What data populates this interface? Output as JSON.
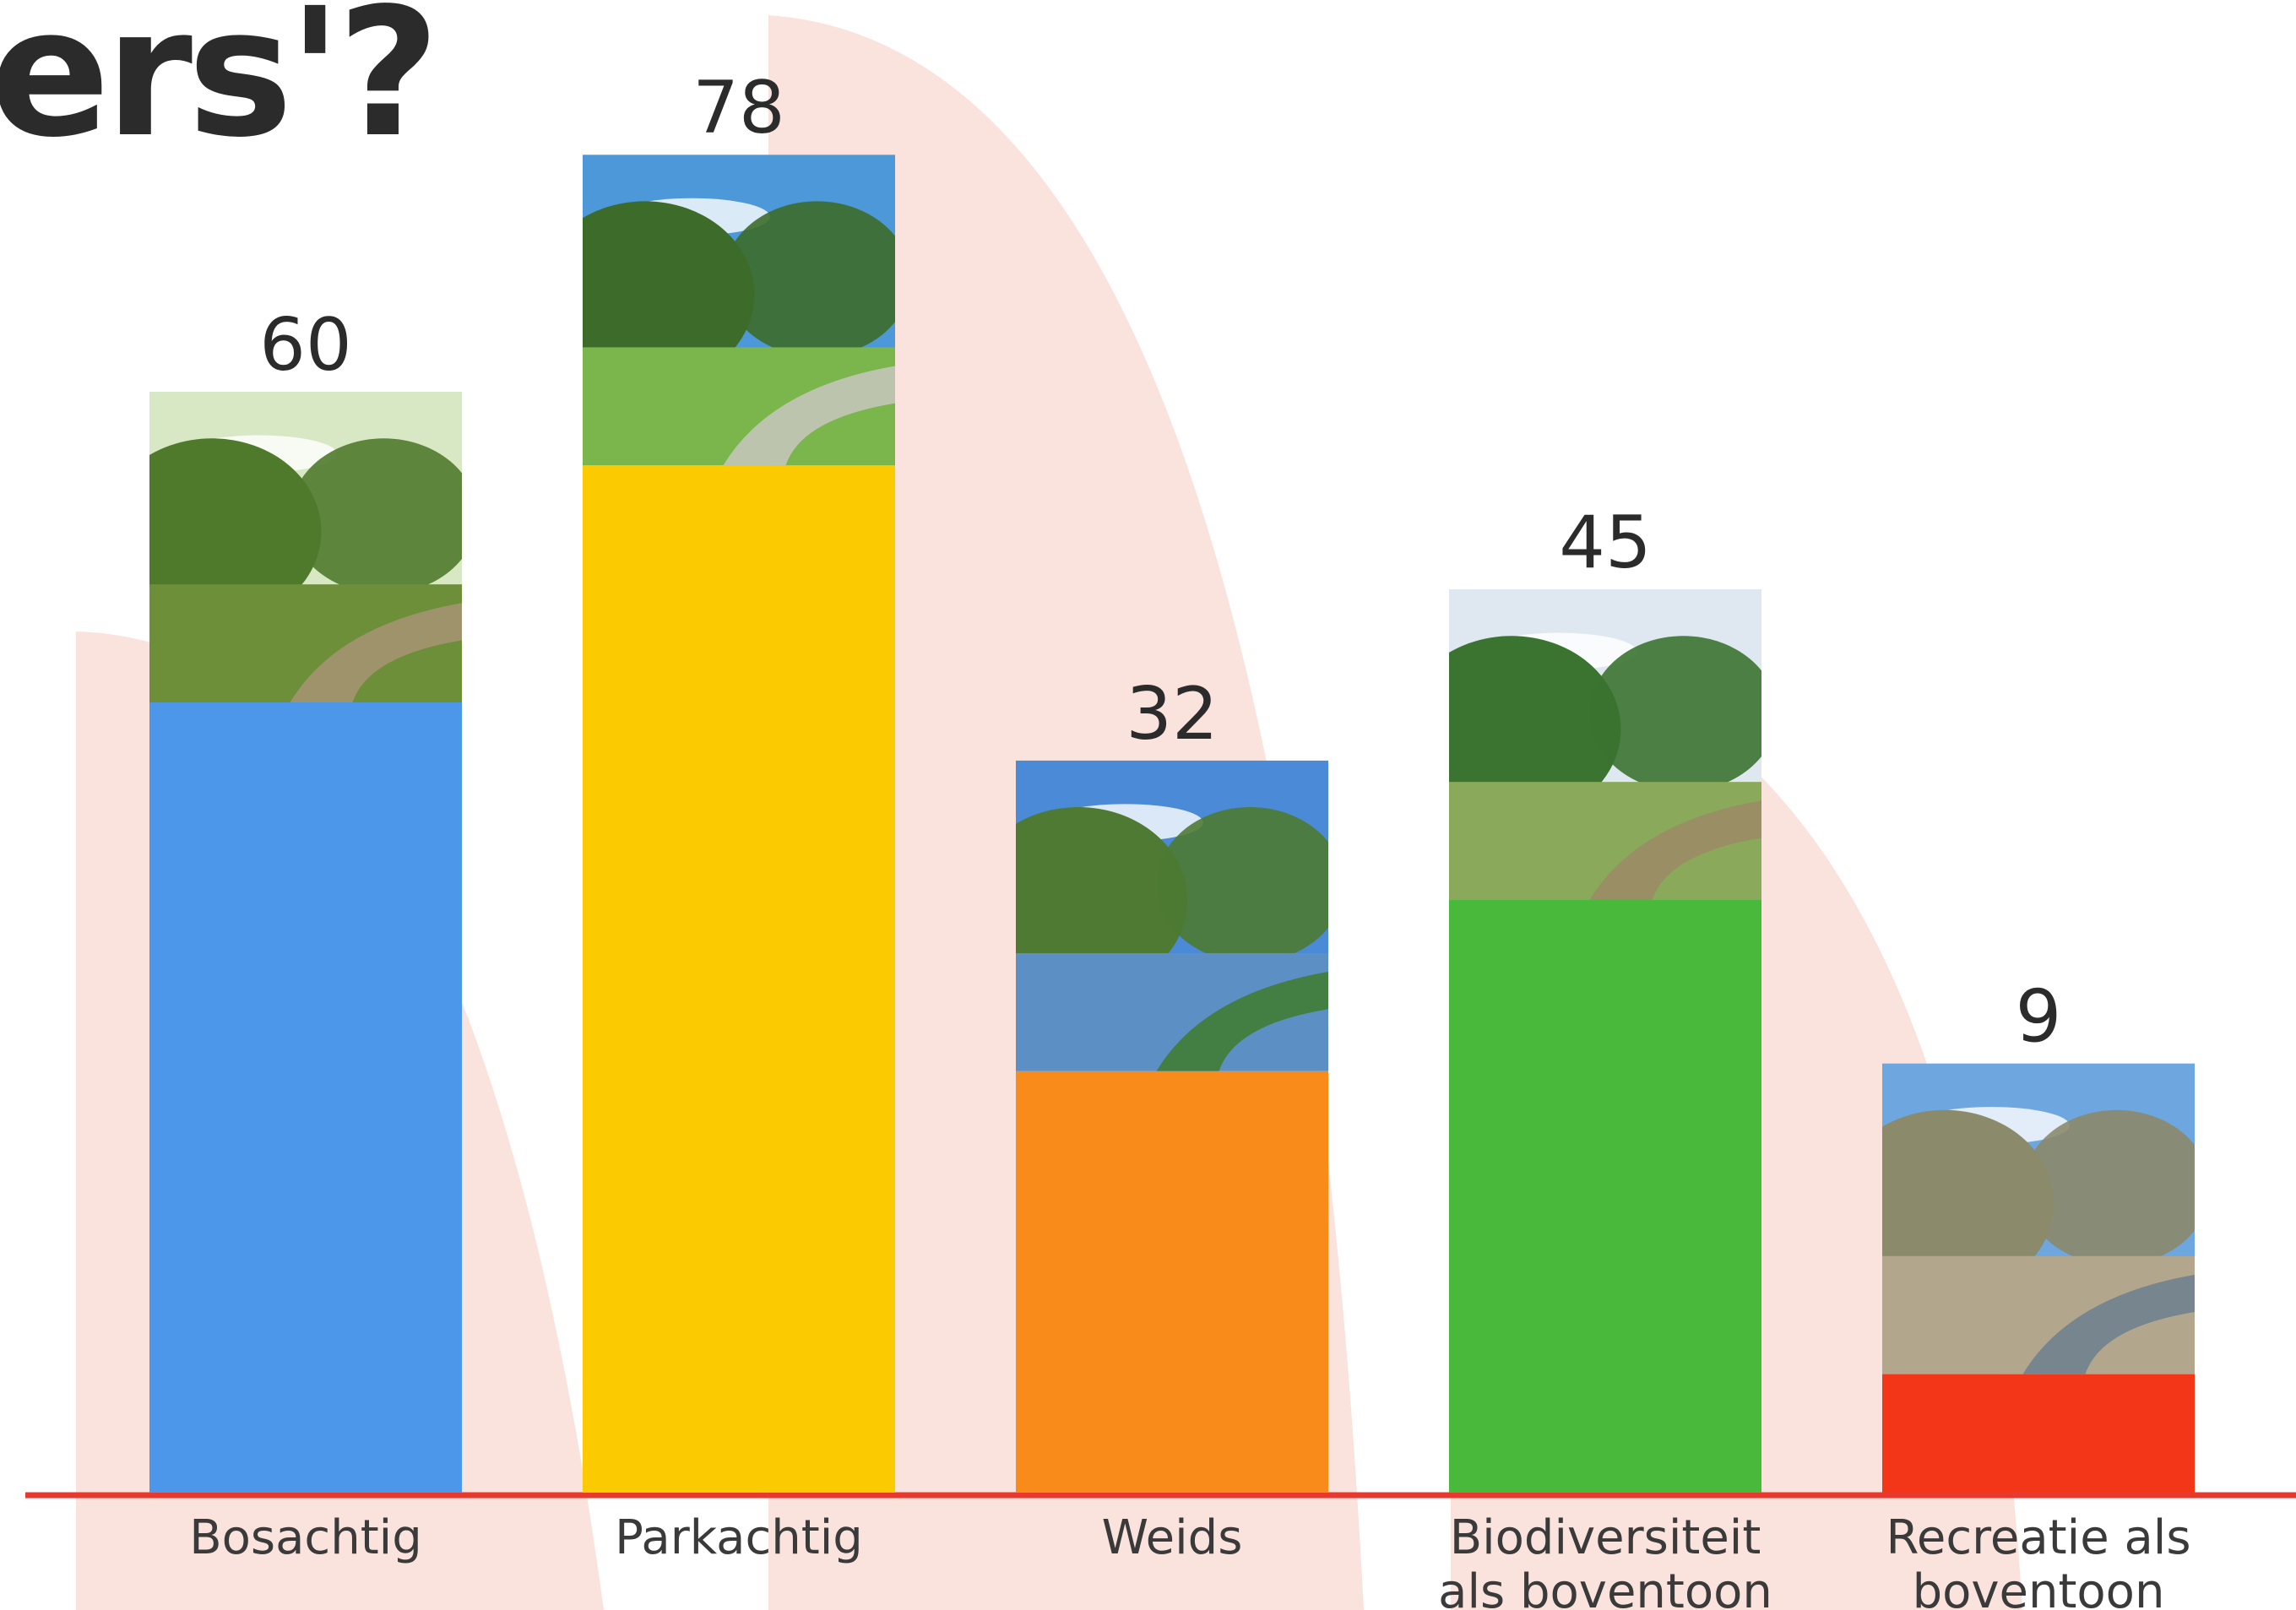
{
  "slide": {
    "title_fragment": "ers'?"
  },
  "colors": {
    "decoration": "#fbe3dd",
    "baseline": "#e8392f",
    "text": "#2b2b2b"
  },
  "chart_data": {
    "type": "bar",
    "title": "",
    "xlabel": "",
    "ylabel": "",
    "categories": [
      [
        "Bosachtig"
      ],
      [
        "Parkachtig"
      ],
      [
        "Weids"
      ],
      [
        "Biodiversiteit",
        "als boventoon"
      ],
      [
        "Recreatie als",
        "boventoon"
      ]
    ],
    "values": [
      60,
      78,
      32,
      45,
      9
    ],
    "bar_colors": [
      "#4c97ea",
      "#fcca00",
      "#f98b1b",
      "#49b93c",
      "#f43618"
    ],
    "photo_icons": [
      "forest-path-photo",
      "park-photo",
      "pond-photo",
      "wetland-photo",
      "water-playground-photo"
    ],
    "photo_palettes": [
      {
        "sky": "#d9e8c4",
        "mid": "#4f7a2c",
        "ground": "#6d8f3a",
        "accent": "#a79474"
      },
      {
        "sky": "#4d98d8",
        "mid": "#3d6b2a",
        "ground": "#7ab64b",
        "accent": "#c9c7bf"
      },
      {
        "sky": "#4a8ad6",
        "mid": "#4e7a33",
        "ground": "#5c8fc4",
        "accent": "#3e7b2c"
      },
      {
        "sky": "#dfe8f0",
        "mid": "#3b7330",
        "ground": "#8aa95a",
        "accent": "#9b8a66"
      },
      {
        "sky": "#6ea7e0",
        "mid": "#8b8a6b",
        "ground": "#b2a78c",
        "accent": "#6c7f8f"
      }
    ],
    "grid": false,
    "legend": "none"
  }
}
